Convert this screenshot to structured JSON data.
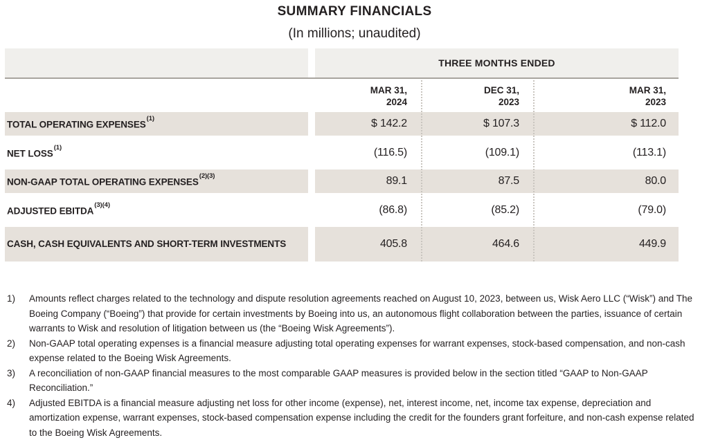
{
  "title": "SUMMARY FINANCIALS",
  "subtitle": "(In millions; unaudited)",
  "table": {
    "header": "THREE MONTHS ENDED",
    "columns": [
      {
        "line1": "MAR 31,",
        "line2": "2024"
      },
      {
        "line1": "DEC 31,",
        "line2": "2023"
      },
      {
        "line1": "MAR 31,",
        "line2": "2023"
      }
    ],
    "rows": [
      {
        "label": "TOTAL OPERATING EXPENSES",
        "superscript": "(1)",
        "values": [
          "$ 142.2",
          "$ 107.3",
          "$ 112.0"
        ]
      },
      {
        "label": "NET LOSS",
        "superscript": "(1)",
        "values": [
          "(116.5)",
          "(109.1)",
          "(113.1)"
        ]
      },
      {
        "label": "NON-GAAP TOTAL OPERATING EXPENSES",
        "superscript": "(2)(3)",
        "values": [
          "89.1",
          "87.5",
          "80.0"
        ]
      },
      {
        "label": "ADJUSTED EBITDA",
        "superscript": "(3)(4)",
        "values": [
          "(86.8)",
          "(85.2)",
          "(79.0)"
        ]
      },
      {
        "label": "CASH, CASH EQUIVALENTS AND SHORT-TERM INVESTMENTS",
        "superscript": "",
        "values": [
          "405.8",
          "464.6",
          "449.9"
        ]
      }
    ]
  },
  "footnotes": [
    {
      "num": "1)",
      "text": "Amounts reflect charges related to the technology and dispute resolution agreements reached on August 10, 2023, between us, Wisk Aero LLC (“Wisk”) and The Boeing Company (“Boeing”) that provide for certain investments by Boeing into us, an autonomous flight collaboration between the parties, issuance of certain warrants to Wisk and resolution of litigation between us (the “Boeing Wisk Agreements”)."
    },
    {
      "num": "2)",
      "text": "Non-GAAP total operating expenses is a financial measure adjusting total operating expenses for warrant expenses, stock-based compensation, and non-cash expense related to the Boeing Wisk Agreements."
    },
    {
      "num": "3)",
      "text": "A reconciliation of non-GAAP financial measures to the most comparable GAAP measures is provided below in the section titled “GAAP to Non-GAAP Reconciliation.”"
    },
    {
      "num": "4)",
      "text": "Adjusted EBITDA is a financial measure adjusting net loss for other income (expense), net, interest income, net, income tax expense, depreciation and amortization expense, warrant expenses, stock-based compensation expense including the credit for the founders grant forfeiture, and non-cash expense related to the Boeing Wisk Agreements."
    }
  ],
  "colors": {
    "row_shade": "#e6e1db",
    "header_band": "#f0efec",
    "header_border": "#a8a49e",
    "dotted_separator": "#c9c5bf",
    "text": "#231f20"
  }
}
